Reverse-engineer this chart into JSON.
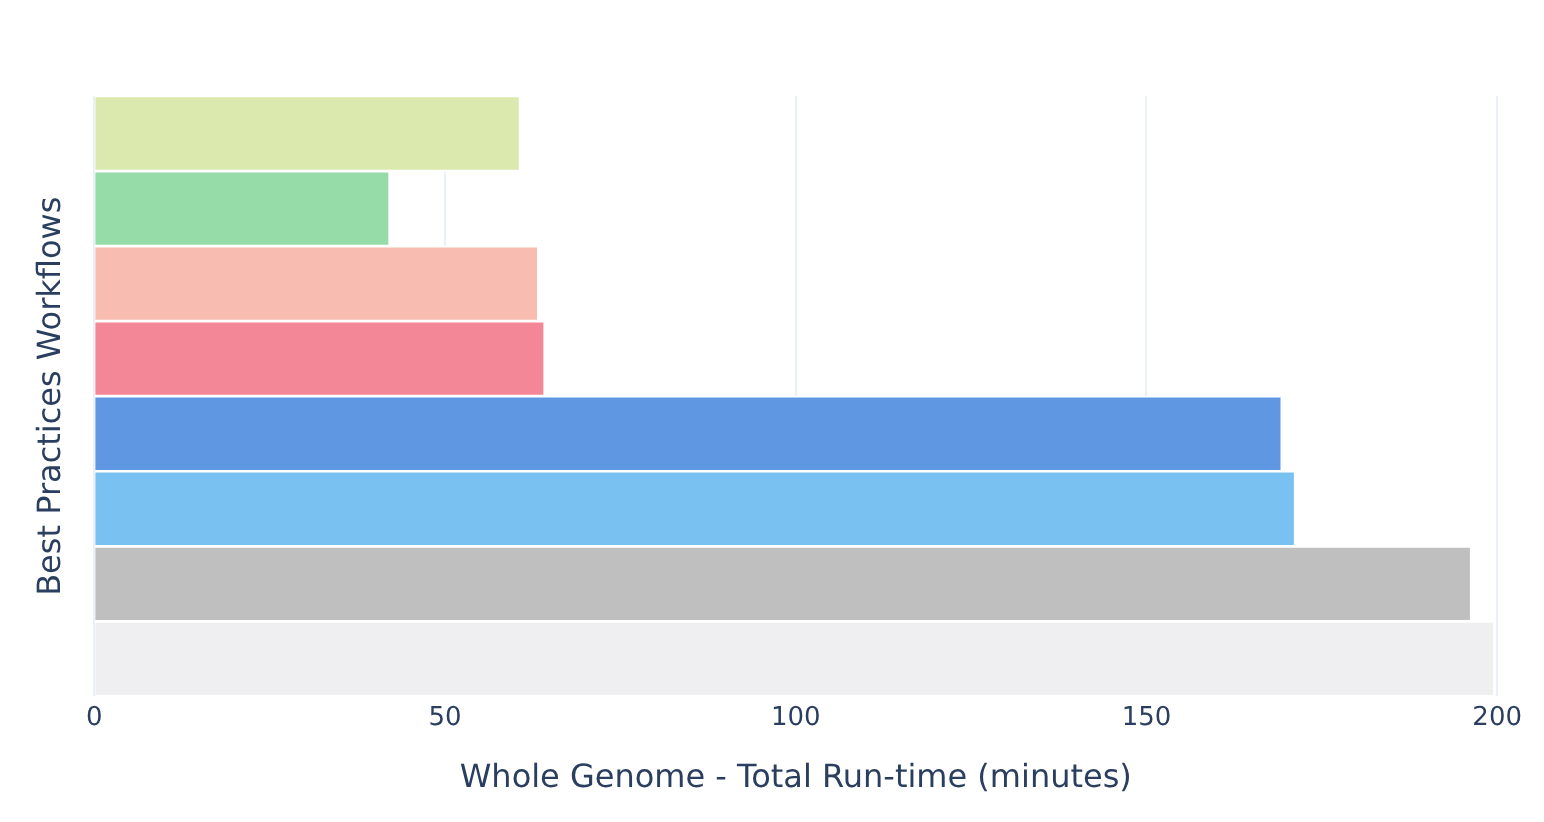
{
  "chart_data": {
    "type": "bar",
    "orientation": "horizontal",
    "ylabel": "Best Practices Workflows",
    "xlabel": "Whole Genome - Total Run-time (minutes)",
    "categories": [
      null,
      null,
      null,
      null,
      null,
      null,
      null,
      null
    ],
    "values": [
      60.7,
      42.1,
      63.3,
      64.2,
      169.3,
      171.2,
      196.3,
      199.6
    ],
    "colors": [
      "#dce9ae",
      "#96dca8",
      "#f8bcb0",
      "#f48797",
      "#5f97e3",
      "#78c1f1",
      "#bfbfbf",
      "#efeff2"
    ],
    "xlim": [
      0,
      200
    ],
    "xticks": [
      0,
      50,
      100,
      150,
      200
    ],
    "grid": "x",
    "legend": false,
    "tick_labels": "x"
  }
}
